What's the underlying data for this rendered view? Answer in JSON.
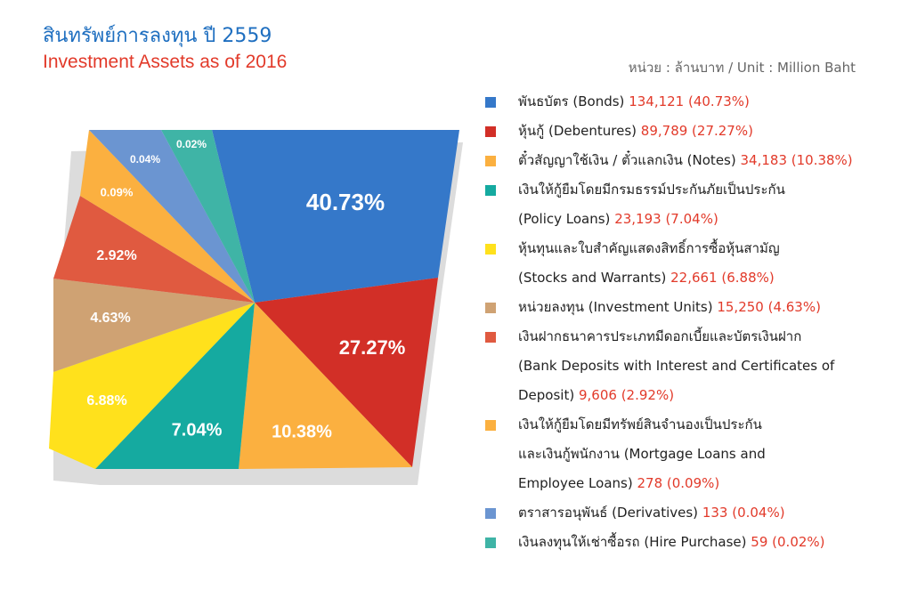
{
  "title_th": "สินทรัพย์การลงทุน ปี 2559",
  "title_en": "Investment Assets as of 2016",
  "unit": "หน่วย : ล้านบาท / Unit : Million Baht",
  "chart_data": {
    "type": "pie",
    "title": "Investment Assets as of 2016",
    "slices": [
      {
        "label": "พันธบัตร (Bonds)",
        "lines": [
          "พันธบัตร (Bonds)"
        ],
        "value": 134121,
        "value_text": "134,121",
        "percent": 40.73,
        "percent_text": "40.73%",
        "color": "#3578c9"
      },
      {
        "label": "หุ้นกู้ (Debentures)",
        "lines": [
          "หุ้นกู้ (Debentures)"
        ],
        "value": 89789,
        "value_text": "89,789",
        "percent": 27.27,
        "percent_text": "27.27%",
        "color": "#d22f27"
      },
      {
        "label": "ตั๋วสัญญาใช้เงิน / ตั๋วแลกเงิน (Notes)",
        "lines": [
          "ตั๋วสัญญาใช้เงิน / ตั๋วแลกเงิน (Notes)"
        ],
        "value": 34183,
        "value_text": "34,183",
        "percent": 10.38,
        "percent_text": "10.38%",
        "color": "#fbb040"
      },
      {
        "label": "เงินให้กู้ยืมโดยมีกรมธรรม์ประกันภัยเป็นประกัน (Policy Loans)",
        "lines": [
          "เงินให้กู้ยืมโดยมีกรมธรรม์ประกันภัยเป็นประกัน",
          "(Policy Loans)"
        ],
        "value": 23193,
        "value_text": "23,193",
        "percent": 7.04,
        "percent_text": "7.04%",
        "color": "#15aaa0"
      },
      {
        "label": "หุ้นทุนและใบสำคัญแสดงสิทธิ์การซื้อหุ้นสามัญ (Stocks and Warrants)",
        "lines": [
          "หุ้นทุนและใบสำคัญแสดงสิทธิ์การซื้อหุ้นสามัญ",
          "(Stocks and Warrants)"
        ],
        "value": 22661,
        "value_text": "22,661",
        "percent": 6.88,
        "percent_text": "6.88%",
        "color": "#ffe11c"
      },
      {
        "label": "หน่วยลงทุน (Investment Units)",
        "lines": [
          "หน่วยลงทุน (Investment Units)"
        ],
        "value": 15250,
        "value_text": "15,250",
        "percent": 4.63,
        "percent_text": "4.63%",
        "color": "#cfa273"
      },
      {
        "label": "เงินฝากธนาคารประเภทมีดอกเบี้ยและบัตรเงินฝาก (Bank Deposits with Interest and Certificates of Deposit)",
        "lines": [
          "เงินฝากธนาคารประเภทมีดอกเบี้ยและบัตรเงินฝาก",
          "(Bank Deposits with Interest and Certificates of",
          "Deposit)"
        ],
        "value": 9606,
        "value_text": "9,606",
        "percent": 2.92,
        "percent_text": "2.92%",
        "color": "#e05a40"
      },
      {
        "label": "เงินให้กู้ยืมโดยมีทรัพย์สินจำนองเป็นประกัน และเงินกู้พนักงาน (Mortgage Loans and Employee Loans)",
        "lines": [
          "เงินให้กู้ยืมโดยมีทรัพย์สินจำนองเป็นประกัน",
          "และเงินกู้พนักงาน (Mortgage Loans and",
          "Employee Loans)"
        ],
        "value": 278,
        "value_text": "278",
        "percent": 0.09,
        "percent_text": "0.09%",
        "color": "#fbb040"
      },
      {
        "label": "ตราสารอนุพันธ์ (Derivatives)",
        "lines": [
          "ตราสารอนุพันธ์ (Derivatives)"
        ],
        "value": 133,
        "value_text": "133",
        "percent": 0.04,
        "percent_text": "0.04%",
        "color": "#6b95d1"
      },
      {
        "label": "เงินลงทุนให้เช่าซื้อรถ (Hire Purchase)",
        "lines": [
          "เงินลงทุนให้เช่าซื้อรถ (Hire Purchase)"
        ],
        "value": 59,
        "value_text": "59",
        "percent": 0.02,
        "percent_text": "0.02%",
        "color": "#3fb4a6"
      }
    ],
    "legend": "right"
  }
}
